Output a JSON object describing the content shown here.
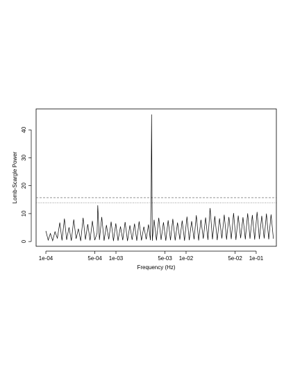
{
  "chart_data": {
    "type": "line",
    "x_label": "Frequency (Hz)",
    "y_label": "Lomb-Scargle Power",
    "color": "#000000",
    "xlog": true,
    "x": [
      0.0001,
      0.000108,
      0.000116,
      0.000125,
      0.000135,
      0.000146,
      0.000158,
      0.00017,
      0.000184,
      0.000198,
      0.000214,
      0.000231,
      0.00025,
      0.00027,
      0.000291,
      0.000314,
      0.00034,
      0.000367,
      0.000396,
      0.000427,
      0.000461,
      0.000498,
      0.000538,
      0.00055,
      0.000581,
      0.000627,
      0.000677,
      0.000731,
      0.00079,
      0.000853,
      0.000921,
      0.000995,
      0.00107,
      0.00116,
      0.00125,
      0.00135,
      0.00146,
      0.00158,
      0.0017,
      0.00184,
      0.00198,
      0.00214,
      0.00231,
      0.0025,
      0.0027,
      0.00291,
      0.0031,
      0.00318,
      0.00322,
      0.0033,
      0.0035,
      0.00378,
      0.00408,
      0.0044,
      0.00476,
      0.00514,
      0.00555,
      0.00599,
      0.00647,
      0.00699,
      0.00755,
      0.00815,
      0.0088,
      0.0095,
      0.0103,
      0.0111,
      0.012,
      0.013,
      0.014,
      0.0151,
      0.0163,
      0.0176,
      0.019,
      0.0205,
      0.022,
      0.0238,
      0.0257,
      0.0278,
      0.03,
      0.0324,
      0.035,
      0.0378,
      0.0408,
      0.0441,
      0.0476,
      0.0514,
      0.0555,
      0.06,
      0.0648,
      0.07,
      0.0756,
      0.0816,
      0.0881,
      0.0952,
      0.103,
      0.111,
      0.12,
      0.13,
      0.14,
      0.151,
      0.163,
      0.176
    ],
    "values": [
      3.8,
      0.5,
      2.9,
      0.3,
      3.5,
      1.2,
      6.8,
      0.4,
      8.2,
      0.6,
      5.1,
      0.3,
      7.9,
      1.0,
      4.6,
      0.2,
      8.5,
      0.7,
      6.2,
      0.4,
      7.4,
      0.5,
      3.0,
      13.0,
      0.6,
      8.8,
      0.3,
      5.9,
      0.8,
      7.1,
      0.2,
      6.5,
      0.3,
      5.4,
      0.5,
      7.0,
      0.2,
      5.8,
      0.6,
      6.4,
      0.3,
      7.2,
      0.4,
      5.3,
      0.8,
      6.1,
      0.5,
      19.0,
      45.5,
      0.3,
      7.8,
      0.4,
      8.5,
      0.6,
      6.9,
      0.3,
      7.6,
      0.5,
      8.1,
      0.4,
      6.8,
      0.7,
      7.5,
      0.3,
      8.9,
      0.5,
      7.3,
      0.8,
      9.4,
      0.4,
      7.8,
      1.0,
      8.6,
      0.6,
      12.0,
      0.8,
      9.1,
      0.5,
      8.3,
      1.1,
      9.6,
      0.7,
      8.8,
      0.9,
      10.2,
      0.6,
      9.3,
      1.2,
      8.7,
      0.8,
      10.1,
      1.0,
      9.5,
      0.7,
      10.6,
      0.9,
      9.2,
      1.1,
      10.0,
      0.8,
      9.7,
      1.0
    ],
    "hlines": [
      15.7,
      13.9
    ],
    "xlim": [
      7.26e-05,
      0.194
    ],
    "ylim": [
      -1.7,
      47.5
    ],
    "xticks": [
      {
        "value": 0.0001,
        "label": "1e-04"
      },
      {
        "value": 0.0005,
        "label": "5e-04"
      },
      {
        "value": 0.001,
        "label": "1e-03"
      },
      {
        "value": 0.005,
        "label": "5e-03"
      },
      {
        "value": 0.01,
        "label": "1e-02"
      },
      {
        "value": 0.05,
        "label": "5e-02"
      },
      {
        "value": 0.1,
        "label": "1e-01"
      }
    ],
    "yticks": [
      0,
      10,
      20,
      30,
      40
    ]
  }
}
